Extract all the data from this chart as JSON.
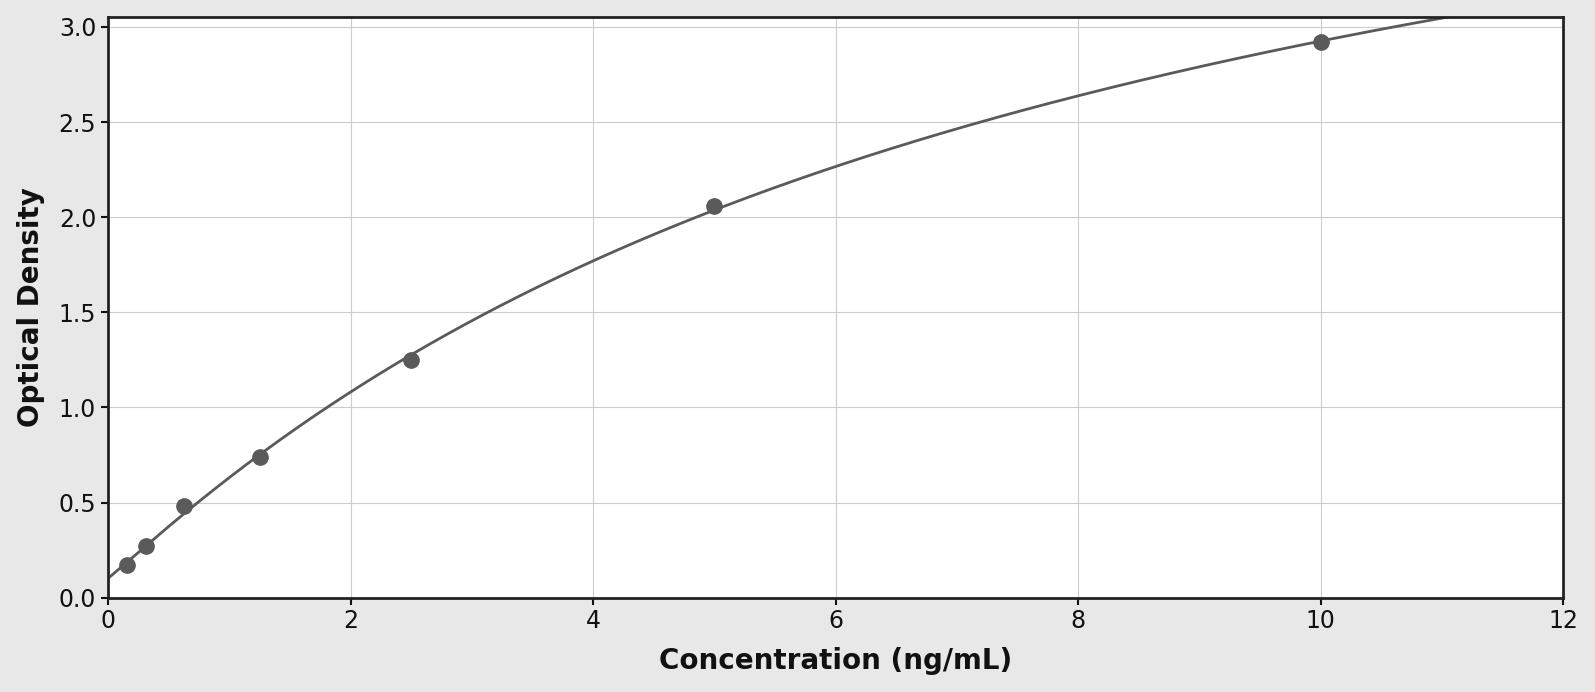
{
  "x_data": [
    0.156,
    0.313,
    0.625,
    1.25,
    2.5,
    5.0,
    10.0
  ],
  "y_data": [
    0.17,
    0.27,
    0.48,
    0.74,
    1.25,
    2.06,
    2.92
  ],
  "point_color": "#5a5a5a",
  "line_color": "#5a5a5a",
  "xlabel": "Concentration (ng/mL)",
  "ylabel": "Optical Density",
  "xlim": [
    0,
    12
  ],
  "ylim": [
    0,
    3.05
  ],
  "xticks": [
    0,
    2,
    4,
    6,
    8,
    10,
    12
  ],
  "yticks": [
    0,
    0.5,
    1.0,
    1.5,
    2.0,
    2.5,
    3.0
  ],
  "xlabel_fontsize": 20,
  "ylabel_fontsize": 20,
  "tick_fontsize": 17,
  "marker_size": 11,
  "line_width": 2.0,
  "figure_bg": "#e8e8e8",
  "axes_bg": "#ffffff",
  "spine_color": "#222222",
  "grid_color": "#cccccc"
}
